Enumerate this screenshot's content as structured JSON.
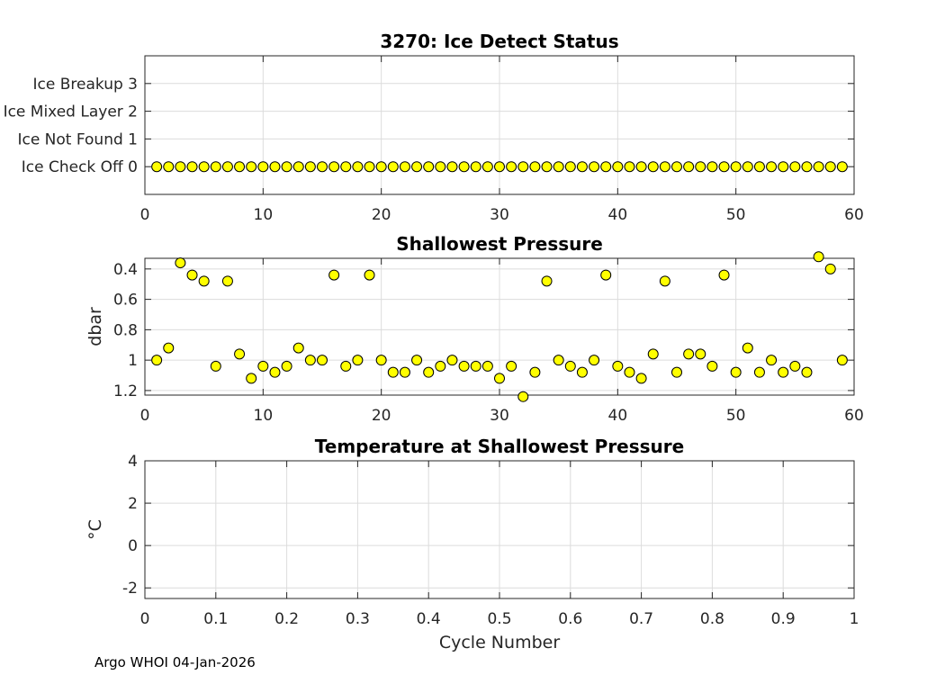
{
  "footer": "Argo WHOI 04-Jan-2026",
  "colors": {
    "marker_fill": "#ffff00",
    "marker_edge": "#000000",
    "grid": "#dcdcdc",
    "axis": "#262626"
  },
  "chart_data": [
    {
      "type": "scatter",
      "title": "3270: Ice Detect Status",
      "xlabel": "",
      "ylabel": "",
      "xlim": [
        0,
        60
      ],
      "ylim": [
        -1,
        4
      ],
      "reverse_y": false,
      "xticks": [
        0,
        10,
        20,
        30,
        40,
        50,
        60
      ],
      "xtick_labels": [
        "0",
        "10",
        "20",
        "30",
        "40",
        "50",
        "60"
      ],
      "yticks": [
        0,
        1,
        2,
        3
      ],
      "ytick_labels": [
        "Ice Check Off 0",
        "Ice Not Found 1",
        "Ice Mixed Layer 2",
        "Ice Breakup 3"
      ],
      "grid": true,
      "series": [
        {
          "name": "ice detect status",
          "x": [
            1,
            2,
            3,
            4,
            5,
            6,
            7,
            8,
            9,
            10,
            11,
            12,
            13,
            14,
            15,
            16,
            17,
            18,
            19,
            20,
            21,
            22,
            23,
            24,
            25,
            26,
            27,
            28,
            29,
            30,
            31,
            32,
            33,
            34,
            35,
            36,
            37,
            38,
            39,
            40,
            41,
            42,
            43,
            44,
            45,
            46,
            47,
            48,
            49,
            50,
            51,
            52,
            53,
            54,
            55,
            56,
            57,
            58,
            59
          ],
          "y": [
            0,
            0,
            0,
            0,
            0,
            0,
            0,
            0,
            0,
            0,
            0,
            0,
            0,
            0,
            0,
            0,
            0,
            0,
            0,
            0,
            0,
            0,
            0,
            0,
            0,
            0,
            0,
            0,
            0,
            0,
            0,
            0,
            0,
            0,
            0,
            0,
            0,
            0,
            0,
            0,
            0,
            0,
            0,
            0,
            0,
            0,
            0,
            0,
            0,
            0,
            0,
            0,
            0,
            0,
            0,
            0,
            0,
            0,
            0
          ]
        }
      ]
    },
    {
      "type": "scatter",
      "title": "Shallowest Pressure",
      "xlabel": "",
      "ylabel": "dbar",
      "xlim": [
        0,
        60
      ],
      "ylim": [
        0.33,
        1.23
      ],
      "reverse_y": true,
      "xticks": [
        0,
        10,
        20,
        30,
        40,
        50,
        60
      ],
      "xtick_labels": [
        "0",
        "10",
        "20",
        "30",
        "40",
        "50",
        "60"
      ],
      "yticks": [
        0.4,
        0.6,
        0.8,
        1,
        1.2
      ],
      "ytick_labels": [
        "0.4",
        "0.6",
        "0.8",
        "1",
        "1.2"
      ],
      "grid": true,
      "series": [
        {
          "name": "shallowest pressure",
          "x": [
            1,
            2,
            3,
            4,
            5,
            6,
            7,
            8,
            9,
            10,
            11,
            12,
            13,
            14,
            15,
            16,
            17,
            18,
            19,
            20,
            21,
            22,
            23,
            24,
            25,
            26,
            27,
            28,
            29,
            30,
            31,
            32,
            33,
            34,
            35,
            36,
            37,
            38,
            39,
            40,
            41,
            42,
            43,
            44,
            45,
            46,
            47,
            48,
            49,
            50,
            51,
            52,
            53,
            54,
            55,
            56,
            57,
            58,
            59
          ],
          "y": [
            1.0,
            0.92,
            0.36,
            0.44,
            0.48,
            1.04,
            0.48,
            0.96,
            1.12,
            1.04,
            1.08,
            1.04,
            0.92,
            1.0,
            1.0,
            0.44,
            1.04,
            1.0,
            0.44,
            1.0,
            1.08,
            1.08,
            1.0,
            1.08,
            1.04,
            1.0,
            1.04,
            1.04,
            1.04,
            1.12,
            1.04,
            1.24,
            1.08,
            0.48,
            1.0,
            1.04,
            1.08,
            1.0,
            0.44,
            1.04,
            1.08,
            1.12,
            0.96,
            0.48,
            1.08,
            0.96,
            0.96,
            1.04,
            0.44,
            1.08,
            0.92,
            1.08,
            1.0,
            1.08,
            1.04,
            1.08,
            0.32,
            0.4,
            1.0
          ]
        }
      ]
    },
    {
      "type": "scatter",
      "title": "Temperature at Shallowest Pressure",
      "xlabel": "Cycle Number",
      "ylabel": "°C",
      "xlim": [
        0,
        1
      ],
      "ylim": [
        -2.5,
        4
      ],
      "reverse_y": false,
      "xticks": [
        0,
        0.1,
        0.2,
        0.3,
        0.4,
        0.5,
        0.6,
        0.7,
        0.8,
        0.9,
        1
      ],
      "xtick_labels": [
        "0",
        "0.1",
        "0.2",
        "0.3",
        "0.4",
        "0.5",
        "0.6",
        "0.7",
        "0.8",
        "0.9",
        "1"
      ],
      "yticks": [
        -2,
        0,
        2,
        4
      ],
      "ytick_labels": [
        "-2",
        "0",
        "2",
        "4"
      ],
      "grid": true,
      "series": []
    }
  ]
}
